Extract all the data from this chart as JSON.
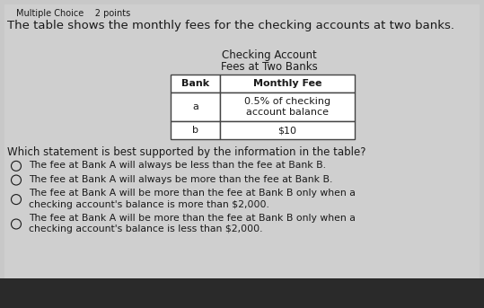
{
  "bg_color": "#c8c8c8",
  "paper_color": "#e8e8e8",
  "header_text": "Multiple Choice    2 points",
  "question_text": "The table shows the monthly fees for the checking accounts at two banks.",
  "table_title_line1": "Checking Account",
  "table_title_line2": "Fees at Two Banks",
  "col_headers": [
    "Bank",
    "Monthly Fee"
  ],
  "rows": [
    [
      "a",
      "0.5% of checking\naccount balance"
    ],
    [
      "b",
      "$10"
    ]
  ],
  "sub_question": "Which statement is best supported by the information in the table?",
  "choices": [
    "The fee at Bank A will always be less than the fee at Bank B.",
    "The fee at Bank A will always be more than the fee at Bank B.",
    "The fee at Bank A will be more than the fee at Bank B only when a\nchecking account's balance is more than $2,000.",
    "The fee at Bank A will be more than the fee at Bank B only when a\nchecking account's balance is less than $2,000."
  ],
  "text_color": "#1a1a1a",
  "table_border_color": "#444444",
  "header_font_size": 7.0,
  "question_font_size": 9.5,
  "title_font_size": 8.5,
  "body_font_size": 8.0,
  "sub_font_size": 8.5,
  "choice_font_size": 7.8,
  "taskbar_color": "#2a2a2a"
}
